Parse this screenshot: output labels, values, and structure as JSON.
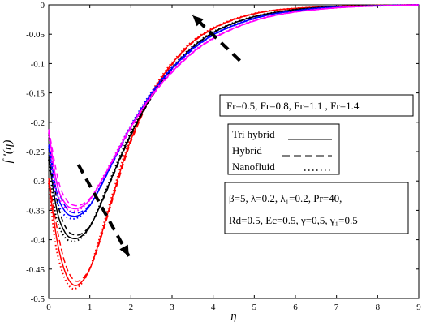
{
  "chart_data": {
    "type": "line",
    "xlabel": "η",
    "ylabel": "f ′(η)",
    "xlim": [
      0,
      9
    ],
    "ylim": [
      -0.5,
      0
    ],
    "xticks": [
      "0",
      "1",
      "2",
      "3",
      "4",
      "5",
      "6",
      "7",
      "8",
      "9"
    ],
    "yticks": [
      "0",
      "-0.05",
      "-0.1",
      "-0.15",
      "-0.2",
      "-0.25",
      "-0.3",
      "-0.35",
      "-0.4",
      "-0.45",
      "-0.5"
    ],
    "grid": false,
    "fr_legend": "Fr=0.5, Fr=0.8, Fr=1.1 , Fr=1.4",
    "style_legend": [
      {
        "label": "Tri hybrid",
        "dash": "solid"
      },
      {
        "label": "Hybrid",
        "dash": "dashed"
      },
      {
        "label": "Nanofluid",
        "dash": "dotted"
      }
    ],
    "params": [
      "β=5,   λ=0.2,   λ₁=0.2,   Pr=40,",
      "Rd=0.5,  Ec=0.5,  γ=0,5,  γ₁=0.5"
    ],
    "series": [
      {
        "color": "#ff0000",
        "x": [
          0,
          0.2,
          0.4,
          0.6,
          0.8,
          1.0,
          1.2,
          1.5,
          1.8,
          2.0,
          2.3,
          2.6,
          3.0,
          3.5,
          4.0,
          4.5,
          5.0,
          5.5,
          6.0,
          6.5,
          7.0,
          7.5,
          8.0,
          8.5,
          9.0
        ],
        "y": [
          -0.3,
          -0.4,
          -0.455,
          -0.477,
          -0.472,
          -0.45,
          -0.41,
          -0.34,
          -0.27,
          -0.23,
          -0.18,
          -0.14,
          -0.1,
          -0.063,
          -0.04,
          -0.025,
          -0.015,
          -0.009,
          -0.006,
          -0.004,
          -0.0025,
          -0.0015,
          -0.0008,
          -0.0004,
          0
        ]
      },
      {
        "color": "#000000",
        "x": [
          0,
          0.2,
          0.4,
          0.6,
          0.8,
          1.0,
          1.2,
          1.5,
          1.8,
          2.0,
          2.3,
          2.6,
          3.0,
          3.5,
          4.0,
          4.5,
          5.0,
          5.5,
          6.0,
          6.5,
          7.0,
          7.5,
          8.0,
          8.5,
          9.0
        ],
        "y": [
          -0.26,
          -0.35,
          -0.388,
          -0.398,
          -0.394,
          -0.378,
          -0.35,
          -0.3,
          -0.25,
          -0.22,
          -0.18,
          -0.145,
          -0.108,
          -0.072,
          -0.047,
          -0.031,
          -0.02,
          -0.013,
          -0.008,
          -0.005,
          -0.003,
          -0.002,
          -0.001,
          -0.0005,
          0
        ]
      },
      {
        "color": "#0000ff",
        "x": [
          0,
          0.2,
          0.4,
          0.6,
          0.8,
          1.0,
          1.2,
          1.5,
          1.8,
          2.0,
          2.3,
          2.6,
          3.0,
          3.5,
          4.0,
          4.5,
          5.0,
          5.5,
          6.0,
          6.5,
          7.0,
          7.5,
          8.0,
          8.5,
          9.0
        ],
        "y": [
          -0.24,
          -0.32,
          -0.352,
          -0.36,
          -0.356,
          -0.342,
          -0.318,
          -0.276,
          -0.234,
          -0.207,
          -0.172,
          -0.141,
          -0.108,
          -0.075,
          -0.051,
          -0.035,
          -0.023,
          -0.015,
          -0.01,
          -0.006,
          -0.004,
          -0.0025,
          -0.0015,
          -0.0007,
          0
        ]
      },
      {
        "color": "#ff00ff",
        "x": [
          0,
          0.2,
          0.4,
          0.6,
          0.8,
          1.0,
          1.2,
          1.5,
          1.8,
          2.0,
          2.3,
          2.6,
          3.0,
          3.5,
          4.0,
          4.5,
          5.0,
          5.5,
          6.0,
          6.5,
          7.0,
          7.5,
          8.0,
          8.5,
          9.0
        ],
        "y": [
          -0.215,
          -0.305,
          -0.338,
          -0.347,
          -0.344,
          -0.332,
          -0.31,
          -0.272,
          -0.233,
          -0.208,
          -0.175,
          -0.146,
          -0.114,
          -0.081,
          -0.057,
          -0.04,
          -0.027,
          -0.018,
          -0.012,
          -0.008,
          -0.005,
          -0.003,
          -0.0018,
          -0.0009,
          0
        ]
      }
    ]
  }
}
